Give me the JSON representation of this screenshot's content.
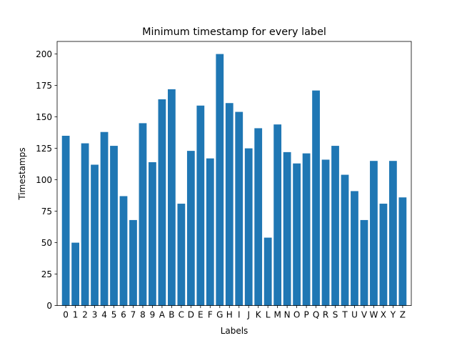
{
  "chart_data": {
    "type": "bar",
    "title": "Minimum timestamp for every label",
    "xlabel": "Labels",
    "ylabel": "Timestamps",
    "categories": [
      "0",
      "1",
      "2",
      "3",
      "4",
      "5",
      "6",
      "7",
      "8",
      "9",
      "A",
      "B",
      "C",
      "D",
      "E",
      "F",
      "G",
      "H",
      "I",
      "J",
      "K",
      "L",
      "M",
      "N",
      "O",
      "P",
      "Q",
      "R",
      "S",
      "T",
      "U",
      "V",
      "W",
      "X",
      "Y",
      "Z"
    ],
    "values": [
      135,
      50,
      129,
      112,
      138,
      127,
      87,
      68,
      145,
      114,
      164,
      172,
      81,
      123,
      159,
      117,
      200,
      161,
      154,
      125,
      141,
      54,
      144,
      122,
      113,
      121,
      171,
      116,
      127,
      104,
      91,
      68,
      115,
      81,
      115,
      86
    ],
    "ylim": [
      0,
      210
    ],
    "yticks": [
      0,
      25,
      50,
      75,
      100,
      125,
      150,
      175,
      200
    ],
    "grid": false,
    "bar_color": "#1f77b4"
  }
}
